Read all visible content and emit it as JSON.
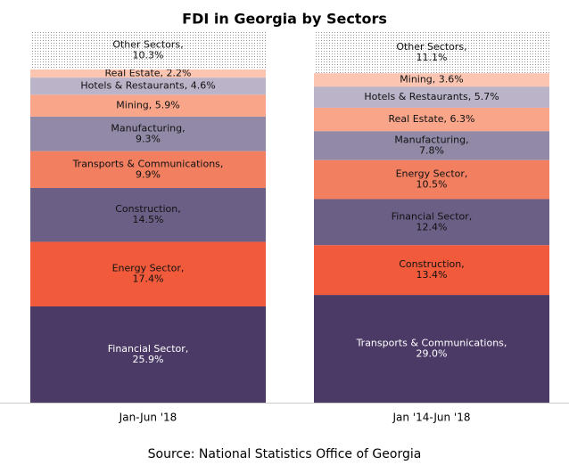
{
  "chart_data": {
    "type": "stacked_bar",
    "title": "FDI in Georgia by Sectors",
    "source": "Source: National Statistics Office of Georgia",
    "categories": [
      "Jan-Jun '18",
      "Jan '14-Jun '18"
    ],
    "ylim": [
      0,
      100
    ],
    "bars": [
      {
        "segments": [
          {
            "label_lines": [
              "Financial Sector,",
              "25.9%"
            ],
            "value": 25.9,
            "color": "#4b3a66"
          },
          {
            "label_lines": [
              "Energy Sector,",
              "17.4%"
            ],
            "value": 17.4,
            "color": "#f15a3a"
          },
          {
            "label_lines": [
              "Construction,",
              "14.5%"
            ],
            "value": 14.5,
            "color": "#6c5f86"
          },
          {
            "label_lines": [
              "Transports & Communications,",
              "9.9%"
            ],
            "value": 9.9,
            "color": "#f37f61"
          },
          {
            "label_lines": [
              "Manufacturing,",
              "9.3%"
            ],
            "value": 9.3,
            "color": "#9189a6"
          },
          {
            "label_lines": [
              "Mining, 5.9%"
            ],
            "value": 5.9,
            "color": "#f9a58a"
          },
          {
            "label_lines": [
              "Hotels & Restaurants, 4.6%"
            ],
            "value": 4.6,
            "color": "#bbb3c8"
          },
          {
            "label_lines": [
              "Real Estate, 2.2%"
            ],
            "value": 2.2,
            "color": "#fbc5b2"
          },
          {
            "label_lines": [
              "Other Sectors,",
              "10.3%"
            ],
            "value": 10.3,
            "color": "#ffffff",
            "pattern": "dots"
          }
        ]
      },
      {
        "segments": [
          {
            "label_lines": [
              "Transports & Communications,",
              "29.0%"
            ],
            "value": 29.0,
            "color": "#4b3a66"
          },
          {
            "label_lines": [
              "Construction,",
              "13.4%"
            ],
            "value": 13.4,
            "color": "#f15a3a"
          },
          {
            "label_lines": [
              "Financial Sector,",
              "12.4%"
            ],
            "value": 12.4,
            "color": "#6c5f86"
          },
          {
            "label_lines": [
              "Energy Sector,",
              "10.5%"
            ],
            "value": 10.5,
            "color": "#f37f61"
          },
          {
            "label_lines": [
              "Manufacturing,",
              "7.8%"
            ],
            "value": 7.8,
            "color": "#9189a6"
          },
          {
            "label_lines": [
              "Real Estate, 6.3%"
            ],
            "value": 6.3,
            "color": "#f9a58a"
          },
          {
            "label_lines": [
              "Hotels & Restaurants, 5.7%"
            ],
            "value": 5.7,
            "color": "#bbb3c8"
          },
          {
            "label_lines": [
              "Mining, 3.6%"
            ],
            "value": 3.6,
            "color": "#fbc5b2"
          },
          {
            "label_lines": [
              "Other Sectors,",
              "11.1%"
            ],
            "value": 11.1,
            "color": "#ffffff",
            "pattern": "dots"
          }
        ]
      }
    ]
  }
}
